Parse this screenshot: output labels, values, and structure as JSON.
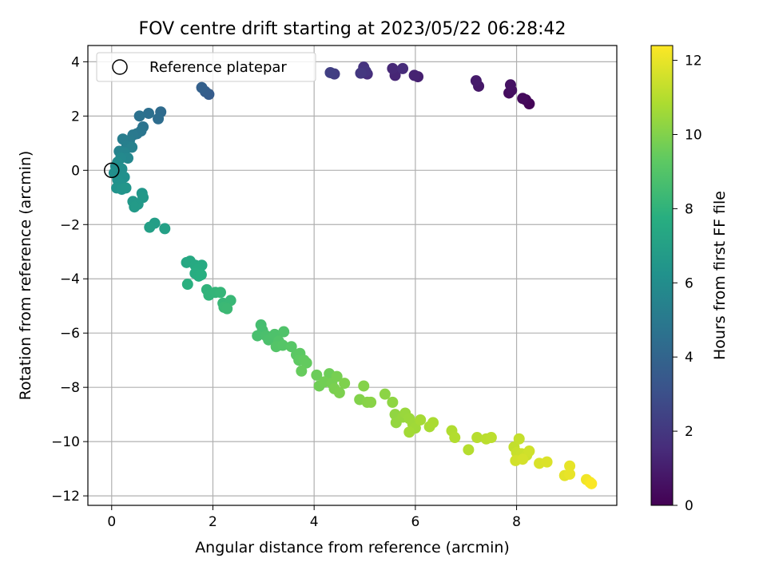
{
  "chart_data": {
    "type": "scatter",
    "title": "FOV centre drift starting at 2023/05/22 06:28:42",
    "xlabel": "Angular distance from reference (arcmin)",
    "ylabel": "Rotation from reference (arcmin)",
    "xlim": [
      -0.47,
      9.98
    ],
    "ylim": [
      -12.35,
      4.6
    ],
    "xticks": [
      0,
      2,
      4,
      6,
      8
    ],
    "xtick_labels": [
      "0",
      "2",
      "4",
      "6",
      "8"
    ],
    "yticks": [
      4,
      2,
      0,
      -2,
      -4,
      -6,
      -8,
      -10,
      -12
    ],
    "ytick_labels": [
      "4",
      "2",
      "0",
      "−2",
      "−4",
      "−6",
      "−8",
      "−10",
      "−12"
    ],
    "grid": true,
    "legend": {
      "placement": "upper-left",
      "entries": [
        "Reference platepar"
      ]
    },
    "reference_point": {
      "x": 0,
      "y": 0,
      "marker": "open-circle"
    },
    "colorbar": {
      "label": "Hours from first FF file",
      "colormap": "viridis",
      "range": [
        0,
        12.4
      ],
      "ticks": [
        0,
        2,
        4,
        6,
        8,
        10,
        12
      ],
      "tick_labels": [
        "0",
        "2",
        "4",
        "6",
        "8",
        "10",
        "12"
      ]
    },
    "series": [
      {
        "points": [
          {
            "x": 8.25,
            "y": 2.45,
            "c": 0.1
          },
          {
            "x": 8.18,
            "y": 2.6,
            "c": 0.2
          },
          {
            "x": 8.12,
            "y": 2.65,
            "c": 0.3
          },
          {
            "x": 7.85,
            "y": 2.85,
            "c": 0.4
          },
          {
            "x": 7.9,
            "y": 2.95,
            "c": 0.5
          },
          {
            "x": 7.88,
            "y": 3.15,
            "c": 0.6
          },
          {
            "x": 7.25,
            "y": 3.1,
            "c": 0.8
          },
          {
            "x": 7.2,
            "y": 3.3,
            "c": 0.9
          },
          {
            "x": 6.05,
            "y": 3.45,
            "c": 1.1
          },
          {
            "x": 5.98,
            "y": 3.5,
            "c": 1.2
          },
          {
            "x": 5.6,
            "y": 3.5,
            "c": 1.3
          },
          {
            "x": 5.55,
            "y": 3.75,
            "c": 1.4
          },
          {
            "x": 5.75,
            "y": 3.75,
            "c": 1.5
          },
          {
            "x": 5.05,
            "y": 3.55,
            "c": 1.6
          },
          {
            "x": 4.95,
            "y": 3.6,
            "c": 1.7
          },
          {
            "x": 4.98,
            "y": 3.8,
            "c": 1.8
          },
          {
            "x": 5.02,
            "y": 3.65,
            "c": 1.9
          },
          {
            "x": 4.92,
            "y": 3.58,
            "c": 2.0
          },
          {
            "x": 4.4,
            "y": 3.55,
            "c": 2.2
          },
          {
            "x": 4.32,
            "y": 3.6,
            "c": 2.3
          },
          {
            "x": 1.92,
            "y": 2.8,
            "c": 3.6
          },
          {
            "x": 1.85,
            "y": 2.9,
            "c": 3.7
          },
          {
            "x": 1.78,
            "y": 3.05,
            "c": 3.8
          },
          {
            "x": 0.97,
            "y": 2.15,
            "c": 4.3
          },
          {
            "x": 0.92,
            "y": 1.9,
            "c": 4.4
          },
          {
            "x": 0.73,
            "y": 2.1,
            "c": 4.5
          },
          {
            "x": 0.55,
            "y": 2.0,
            "c": 4.6
          },
          {
            "x": 0.62,
            "y": 1.6,
            "c": 4.7
          },
          {
            "x": 0.58,
            "y": 1.45,
            "c": 4.8
          },
          {
            "x": 0.5,
            "y": 1.35,
            "c": 4.9
          },
          {
            "x": 0.42,
            "y": 1.3,
            "c": 5.0
          },
          {
            "x": 0.35,
            "y": 1.1,
            "c": 5.1
          },
          {
            "x": 0.22,
            "y": 1.15,
            "c": 5.2
          },
          {
            "x": 0.3,
            "y": 0.9,
            "c": 5.3
          },
          {
            "x": 0.4,
            "y": 0.85,
            "c": 5.4
          },
          {
            "x": 0.15,
            "y": 0.7,
            "c": 5.5
          },
          {
            "x": 0.25,
            "y": 0.65,
            "c": 5.6
          },
          {
            "x": 0.32,
            "y": 0.45,
            "c": 5.7
          },
          {
            "x": 0.18,
            "y": 0.45,
            "c": 5.8
          },
          {
            "x": 0.12,
            "y": 0.3,
            "c": 5.9
          },
          {
            "x": 0.08,
            "y": 0.15,
            "c": 6.0
          },
          {
            "x": 0.2,
            "y": 0.05,
            "c": 6.05
          },
          {
            "x": 0.05,
            "y": -0.1,
            "c": 6.1
          },
          {
            "x": 0.25,
            "y": -0.25,
            "c": 6.15
          },
          {
            "x": 0.12,
            "y": -0.35,
            "c": 6.2
          },
          {
            "x": 0.18,
            "y": -0.5,
            "c": 6.25
          },
          {
            "x": 0.1,
            "y": -0.65,
            "c": 6.3
          },
          {
            "x": 0.2,
            "y": -0.7,
            "c": 6.35
          },
          {
            "x": 0.28,
            "y": -0.65,
            "c": 6.4
          },
          {
            "x": 0.6,
            "y": -0.85,
            "c": 6.5
          },
          {
            "x": 0.62,
            "y": -1.0,
            "c": 6.55
          },
          {
            "x": 0.42,
            "y": -1.15,
            "c": 6.6
          },
          {
            "x": 0.52,
            "y": -1.25,
            "c": 6.65
          },
          {
            "x": 0.45,
            "y": -1.35,
            "c": 6.7
          },
          {
            "x": 0.85,
            "y": -1.95,
            "c": 6.9
          },
          {
            "x": 0.75,
            "y": -2.1,
            "c": 6.95
          },
          {
            "x": 1.05,
            "y": -2.15,
            "c": 7.0
          },
          {
            "x": 1.48,
            "y": -3.4,
            "c": 7.4
          },
          {
            "x": 1.55,
            "y": -3.35,
            "c": 7.45
          },
          {
            "x": 1.65,
            "y": -3.5,
            "c": 7.5
          },
          {
            "x": 1.78,
            "y": -3.5,
            "c": 7.55
          },
          {
            "x": 1.7,
            "y": -3.65,
            "c": 7.6
          },
          {
            "x": 1.65,
            "y": -3.8,
            "c": 7.65
          },
          {
            "x": 1.72,
            "y": -3.9,
            "c": 7.7
          },
          {
            "x": 1.77,
            "y": -3.85,
            "c": 7.75
          },
          {
            "x": 1.5,
            "y": -4.2,
            "c": 7.8
          },
          {
            "x": 1.88,
            "y": -4.4,
            "c": 8.0
          },
          {
            "x": 1.92,
            "y": -4.6,
            "c": 8.05
          },
          {
            "x": 2.05,
            "y": -4.5,
            "c": 8.1
          },
          {
            "x": 2.15,
            "y": -4.5,
            "c": 8.15
          },
          {
            "x": 2.2,
            "y": -4.9,
            "c": 8.2
          },
          {
            "x": 2.35,
            "y": -4.8,
            "c": 8.25
          },
          {
            "x": 2.22,
            "y": -5.05,
            "c": 8.3
          },
          {
            "x": 2.28,
            "y": -5.1,
            "c": 8.35
          },
          {
            "x": 2.95,
            "y": -5.7,
            "c": 8.6
          },
          {
            "x": 2.98,
            "y": -5.9,
            "c": 8.65
          },
          {
            "x": 2.88,
            "y": -6.1,
            "c": 8.7
          },
          {
            "x": 3.05,
            "y": -6.1,
            "c": 8.75
          },
          {
            "x": 3.1,
            "y": -6.25,
            "c": 8.8
          },
          {
            "x": 3.22,
            "y": -6.05,
            "c": 8.85
          },
          {
            "x": 3.4,
            "y": -5.95,
            "c": 8.9
          },
          {
            "x": 3.3,
            "y": -6.3,
            "c": 8.95
          },
          {
            "x": 3.25,
            "y": -6.5,
            "c": 9.0
          },
          {
            "x": 3.38,
            "y": -6.45,
            "c": 9.05
          },
          {
            "x": 3.55,
            "y": -6.5,
            "c": 9.1
          },
          {
            "x": 3.65,
            "y": -6.8,
            "c": 9.2
          },
          {
            "x": 3.72,
            "y": -6.75,
            "c": 9.25
          },
          {
            "x": 3.7,
            "y": -7.0,
            "c": 9.3
          },
          {
            "x": 3.8,
            "y": -7.0,
            "c": 9.35
          },
          {
            "x": 3.85,
            "y": -7.1,
            "c": 9.4
          },
          {
            "x": 3.75,
            "y": -7.4,
            "c": 9.45
          },
          {
            "x": 4.05,
            "y": -7.55,
            "c": 9.55
          },
          {
            "x": 4.3,
            "y": -7.5,
            "c": 9.6
          },
          {
            "x": 4.1,
            "y": -7.95,
            "c": 9.65
          },
          {
            "x": 4.2,
            "y": -7.8,
            "c": 9.7
          },
          {
            "x": 4.35,
            "y": -7.85,
            "c": 9.75
          },
          {
            "x": 4.45,
            "y": -7.6,
            "c": 9.8
          },
          {
            "x": 4.4,
            "y": -8.05,
            "c": 9.85
          },
          {
            "x": 4.5,
            "y": -8.2,
            "c": 9.9
          },
          {
            "x": 4.6,
            "y": -7.85,
            "c": 9.95
          },
          {
            "x": 4.9,
            "y": -8.45,
            "c": 10.0
          },
          {
            "x": 4.98,
            "y": -7.95,
            "c": 10.05
          },
          {
            "x": 5.05,
            "y": -8.55,
            "c": 10.1
          },
          {
            "x": 5.12,
            "y": -8.55,
            "c": 10.15
          },
          {
            "x": 5.4,
            "y": -8.25,
            "c": 10.2
          },
          {
            "x": 5.55,
            "y": -8.55,
            "c": 10.25
          },
          {
            "x": 5.6,
            "y": -9.0,
            "c": 10.3
          },
          {
            "x": 5.62,
            "y": -9.3,
            "c": 10.35
          },
          {
            "x": 5.75,
            "y": -9.1,
            "c": 10.4
          },
          {
            "x": 5.8,
            "y": -8.95,
            "c": 10.45
          },
          {
            "x": 5.88,
            "y": -9.15,
            "c": 10.5
          },
          {
            "x": 5.95,
            "y": -9.35,
            "c": 10.55
          },
          {
            "x": 6.0,
            "y": -9.5,
            "c": 10.6
          },
          {
            "x": 5.88,
            "y": -9.65,
            "c": 10.65
          },
          {
            "x": 6.1,
            "y": -9.2,
            "c": 10.7
          },
          {
            "x": 6.28,
            "y": -9.45,
            "c": 10.75
          },
          {
            "x": 6.35,
            "y": -9.3,
            "c": 10.8
          },
          {
            "x": 6.72,
            "y": -9.6,
            "c": 10.9
          },
          {
            "x": 6.78,
            "y": -9.85,
            "c": 10.95
          },
          {
            "x": 7.05,
            "y": -10.3,
            "c": 11.0
          },
          {
            "x": 7.22,
            "y": -9.85,
            "c": 11.05
          },
          {
            "x": 7.4,
            "y": -9.9,
            "c": 11.1
          },
          {
            "x": 7.5,
            "y": -9.85,
            "c": 11.15
          },
          {
            "x": 7.95,
            "y": -10.2,
            "c": 11.25
          },
          {
            "x": 8.05,
            "y": -9.9,
            "c": 11.3
          },
          {
            "x": 8.0,
            "y": -10.4,
            "c": 11.35
          },
          {
            "x": 8.1,
            "y": -10.45,
            "c": 11.4
          },
          {
            "x": 8.2,
            "y": -10.5,
            "c": 11.45
          },
          {
            "x": 8.25,
            "y": -10.35,
            "c": 11.5
          },
          {
            "x": 7.98,
            "y": -10.7,
            "c": 11.55
          },
          {
            "x": 8.12,
            "y": -10.65,
            "c": 11.6
          },
          {
            "x": 8.45,
            "y": -10.8,
            "c": 11.7
          },
          {
            "x": 8.6,
            "y": -10.75,
            "c": 11.75
          },
          {
            "x": 8.95,
            "y": -11.25,
            "c": 11.9
          },
          {
            "x": 9.05,
            "y": -10.9,
            "c": 11.95
          },
          {
            "x": 9.05,
            "y": -11.2,
            "c": 12.0
          },
          {
            "x": 9.38,
            "y": -11.4,
            "c": 12.15
          },
          {
            "x": 9.45,
            "y": -11.5,
            "c": 12.25
          },
          {
            "x": 9.48,
            "y": -11.55,
            "c": 12.35
          }
        ]
      }
    ]
  }
}
